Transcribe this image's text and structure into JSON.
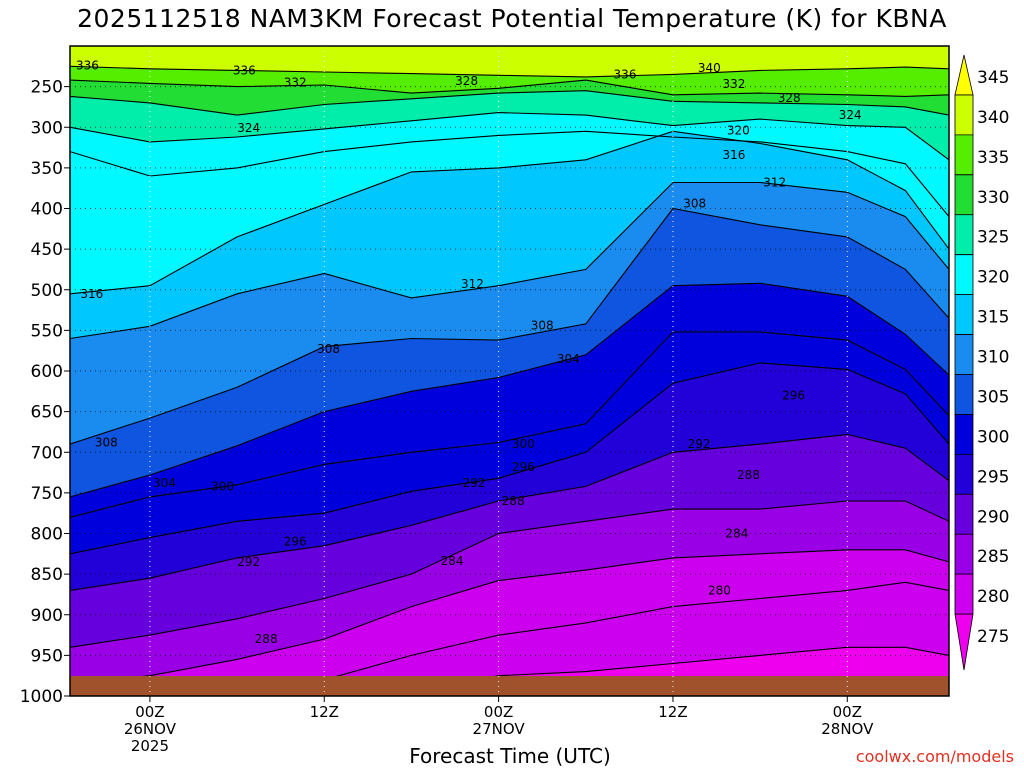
{
  "title": "2025112518 NAM3KM Forecast Potential Temperature (K) for KBNA",
  "credit": "coolwx.com/models",
  "chart_data": {
    "type": "heatmap",
    "subtype": "filled-contour time-height cross section",
    "title": "2025112518 NAM3KM Forecast Potential Temperature (K) for KBNA",
    "xlabel": "Forecast Time (UTC)",
    "ylabel": "",
    "x_range_hours": [
      -5.5,
      55
    ],
    "x_ticks": [
      {
        "t": 0,
        "lines": [
          "00Z",
          "26NOV",
          "2025"
        ]
      },
      {
        "t": 12,
        "lines": [
          "12Z"
        ]
      },
      {
        "t": 24,
        "lines": [
          "00Z",
          "27NOV"
        ]
      },
      {
        "t": 36,
        "lines": [
          "12Z"
        ]
      },
      {
        "t": 48,
        "lines": [
          "00Z",
          "28NOV"
        ]
      }
    ],
    "y_range_hpa": [
      200,
      1000
    ],
    "y_ticks": [
      250,
      300,
      350,
      400,
      450,
      500,
      550,
      600,
      650,
      700,
      750,
      800,
      850,
      900,
      950,
      1000
    ],
    "grid": true,
    "colorbar": {
      "levels": [
        345,
        340,
        335,
        330,
        325,
        320,
        315,
        310,
        305,
        300,
        295,
        290,
        285,
        280,
        275
      ],
      "colors": [
        "#ffff00",
        "#ccff00",
        "#55ee00",
        "#22dd33",
        "#00eeaa",
        "#00f8ff",
        "#00c8ff",
        "#1a8cf0",
        "#0f55e0",
        "#0000dd",
        "#2200d8",
        "#6600dd",
        "#9900e6",
        "#cc00ee",
        "#ee00ee"
      ],
      "range": [
        275,
        345
      ]
    },
    "times": [
      -5.5,
      0,
      6,
      12,
      18,
      24,
      30,
      36,
      42,
      48,
      52,
      55
    ],
    "isentropes": [
      {
        "theta": 336,
        "p": [
          225,
          228,
          230,
          232,
          234,
          236,
          238,
          235,
          230,
          228,
          226,
          228
        ]
      },
      {
        "theta": 332,
        "p": [
          242,
          246,
          250,
          248,
          258,
          252,
          242,
          260,
          258,
          260,
          262,
          260
        ]
      },
      {
        "theta": 328,
        "p": [
          262,
          270,
          285,
          272,
          265,
          258,
          255,
          268,
          270,
          272,
          275,
          285
        ]
      },
      {
        "theta": 324,
        "p": [
          300,
          318,
          312,
          302,
          292,
          282,
          285,
          298,
          290,
          298,
          300,
          340
        ]
      },
      {
        "theta": 320,
        "p": [
          330,
          360,
          350,
          330,
          318,
          310,
          305,
          312,
          318,
          330,
          345,
          410
        ]
      },
      {
        "theta": 316,
        "p": [
          505,
          495,
          435,
          395,
          355,
          350,
          340,
          305,
          320,
          340,
          378,
          450
        ]
      },
      {
        "theta": 312,
        "p": [
          560,
          545,
          505,
          480,
          510,
          495,
          475,
          368,
          368,
          380,
          410,
          475
        ]
      },
      {
        "theta": 308,
        "p": [
          690,
          658,
          620,
          570,
          560,
          562,
          542,
          400,
          420,
          435,
          475,
          535
        ]
      },
      {
        "theta": 304,
        "p": [
          755,
          728,
          692,
          650,
          625,
          608,
          580,
          495,
          492,
          508,
          555,
          605
        ]
      },
      {
        "theta": 300,
        "p": [
          780,
          755,
          740,
          715,
          700,
          688,
          665,
          552,
          552,
          562,
          598,
          655
        ]
      },
      {
        "theta": 296,
        "p": [
          825,
          805,
          785,
          775,
          748,
          732,
          700,
          615,
          590,
          598,
          628,
          690
        ]
      },
      {
        "theta": 292,
        "p": [
          870,
          855,
          830,
          815,
          790,
          760,
          742,
          700,
          690,
          678,
          695,
          735
        ]
      },
      {
        "theta": 288,
        "p": [
          940,
          925,
          905,
          880,
          850,
          800,
          785,
          770,
          770,
          760,
          760,
          785
        ]
      },
      {
        "theta": 284,
        "p": [
          985,
          975,
          955,
          930,
          890,
          858,
          845,
          830,
          825,
          820,
          820,
          835
        ]
      },
      {
        "theta": 280,
        "p": [
          1000,
          1000,
          995,
          980,
          950,
          925,
          910,
          890,
          880,
          870,
          860,
          870
        ]
      },
      {
        "theta": 276,
        "p": [
          1000,
          1000,
          1000,
          1000,
          995,
          975,
          970,
          960,
          950,
          940,
          940,
          950
        ]
      }
    ],
    "contour_labels": [
      {
        "text": "336",
        "t": -4.3,
        "p": 224
      },
      {
        "text": "336",
        "t": 6.5,
        "p": 230
      },
      {
        "text": "340",
        "t": 38.5,
        "p": 227
      },
      {
        "text": "336",
        "t": 32.7,
        "p": 235
      },
      {
        "text": "332",
        "t": 10,
        "p": 245
      },
      {
        "text": "328",
        "t": 21.8,
        "p": 243
      },
      {
        "text": "332",
        "t": 40.2,
        "p": 247
      },
      {
        "text": "328",
        "t": 44,
        "p": 264
      },
      {
        "text": "324",
        "t": 6.8,
        "p": 301
      },
      {
        "text": "324",
        "t": 48.2,
        "p": 285
      },
      {
        "text": "320",
        "t": 40.5,
        "p": 304
      },
      {
        "text": "316",
        "t": 40.2,
        "p": 334
      },
      {
        "text": "312",
        "t": 43,
        "p": 368
      },
      {
        "text": "308",
        "t": 37.5,
        "p": 394
      },
      {
        "text": "316",
        "t": -4,
        "p": 505
      },
      {
        "text": "312",
        "t": 22.2,
        "p": 493
      },
      {
        "text": "308",
        "t": 12.3,
        "p": 573
      },
      {
        "text": "308",
        "t": 27,
        "p": 544
      },
      {
        "text": "304",
        "t": 28.8,
        "p": 585
      },
      {
        "text": "308",
        "t": -3,
        "p": 688
      },
      {
        "text": "300",
        "t": 25.7,
        "p": 690
      },
      {
        "text": "296",
        "t": 25.7,
        "p": 718
      },
      {
        "text": "292",
        "t": 22.3,
        "p": 738
      },
      {
        "text": "288",
        "t": 25,
        "p": 760
      },
      {
        "text": "304",
        "t": 1,
        "p": 738
      },
      {
        "text": "300",
        "t": 5,
        "p": 742
      },
      {
        "text": "296",
        "t": 10,
        "p": 810
      },
      {
        "text": "292",
        "t": 6.8,
        "p": 835
      },
      {
        "text": "284",
        "t": 20.8,
        "p": 834
      },
      {
        "text": "288",
        "t": 8,
        "p": 930
      },
      {
        "text": "296",
        "t": 44.3,
        "p": 630
      },
      {
        "text": "292",
        "t": 37.8,
        "p": 690
      },
      {
        "text": "288",
        "t": 41.2,
        "p": 728
      },
      {
        "text": "284",
        "t": 40.4,
        "p": 800
      },
      {
        "text": "280",
        "t": 39.2,
        "p": 870
      }
    ]
  }
}
